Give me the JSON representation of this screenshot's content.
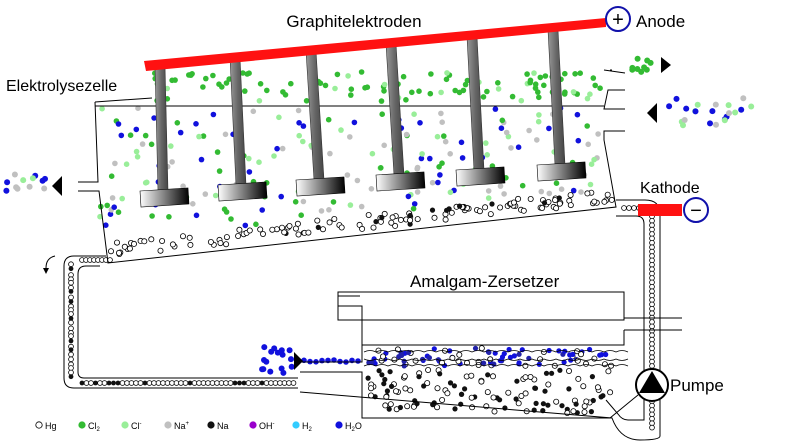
{
  "labels": {
    "electrodes": "Graphitelektroden",
    "anode": "Anode",
    "cell": "Elektrolysezelle",
    "cathode": "Kathode",
    "decomposer": "Amalgam-Zersetzer",
    "pump": "Pumpe"
  },
  "signs": {
    "plus": "+",
    "minus": "−"
  },
  "legend": [
    {
      "key": "hg",
      "label": "Hg",
      "sub": "",
      "sup": "",
      "color": "#ffffff",
      "stroke": "#000000"
    },
    {
      "key": "cl2",
      "label": "Cl",
      "sub": "2",
      "sup": "",
      "color": "#33bb33",
      "stroke": "#33bb33"
    },
    {
      "key": "cl",
      "label": "Cl",
      "sub": "",
      "sup": "-",
      "color": "#99ee99",
      "stroke": "#99ee99"
    },
    {
      "key": "na+",
      "label": "Na",
      "sub": "",
      "sup": "+",
      "color": "#c0c0c0",
      "stroke": "#c0c0c0"
    },
    {
      "key": "na",
      "label": "Na",
      "sub": "",
      "sup": "",
      "color": "#111111",
      "stroke": "#111111"
    },
    {
      "key": "oh",
      "label": "OH",
      "sub": "",
      "sup": "-",
      "color": "#9900cc",
      "stroke": "#9900cc"
    },
    {
      "key": "h2",
      "label": "H",
      "sub": "2",
      "sup": "",
      "color": "#33ccff",
      "stroke": "#33ccff"
    },
    {
      "key": "h2o",
      "label": "H",
      "sub": "2",
      "sup": "",
      "tail": "O",
      "color": "#1111dd",
      "stroke": "#1111dd"
    }
  ],
  "colors": {
    "electrode_bar": "#ff1111",
    "electrode_rod": "#666666",
    "outline": "#000000",
    "water": "#1111dd",
    "cl2": "#33bb33",
    "cl": "#99ee99",
    "na_ion": "#c0c0c0",
    "mercury": "#ffffff",
    "sodium": "#111111"
  }
}
